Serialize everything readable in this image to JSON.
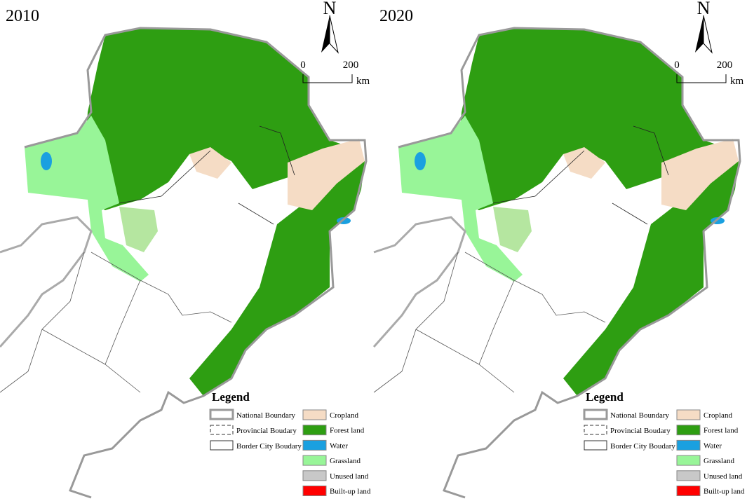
{
  "panels": [
    {
      "title": "2010"
    },
    {
      "title": "2020"
    }
  ],
  "north": "N",
  "scale": {
    "start": "0",
    "end": "200",
    "unit": "km"
  },
  "legend": {
    "title": "Legend",
    "boundaries": [
      "National Boundary",
      "Provincial Boudary",
      "Border City Boudary"
    ],
    "land": [
      {
        "label": "Cropland",
        "color": "#f5dcc5"
      },
      {
        "label": "Forest land",
        "color": "#2e9e12"
      },
      {
        "label": "Water",
        "color": "#1aa0e0"
      },
      {
        "label": "Grassland",
        "color": "#98f598"
      },
      {
        "label": "Unused land",
        "color": "#c8c8c8"
      },
      {
        "label": "Built-up land",
        "color": "#ff0000"
      }
    ]
  }
}
